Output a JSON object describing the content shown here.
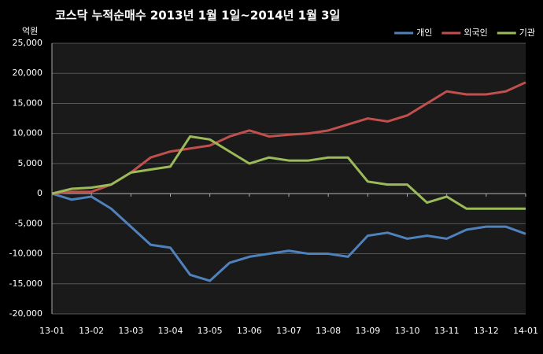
{
  "chart_data": {
    "type": "line",
    "title": "코스닥  누적순매수 2013년 1월 1일~2014년 1월 3일",
    "y_label": "억원",
    "categories": [
      "13-01",
      null,
      "13-02",
      null,
      "13-03",
      null,
      "13-04",
      null,
      "13-05",
      null,
      "13-06",
      null,
      "13-07",
      null,
      "13-08",
      null,
      "13-09",
      null,
      "13-10",
      null,
      "13-11",
      null,
      "13-12",
      null,
      "14-01"
    ],
    "series": [
      {
        "name": "개인",
        "color": "#4f81bd",
        "values": [
          0,
          -1000,
          -500,
          -2500,
          -5500,
          -8500,
          -9000,
          -13500,
          -14500,
          -11500,
          -10500,
          -10000,
          -9500,
          -10000,
          -10000,
          -10500,
          -7000,
          -6500,
          -7500,
          -7000,
          -7500,
          -6000,
          -5500,
          -5500,
          -6700
        ]
      },
      {
        "name": "외국인",
        "color": "#c0504d",
        "values": [
          0,
          300,
          300,
          1500,
          3500,
          6000,
          7000,
          7500,
          8000,
          9500,
          10500,
          9500,
          9800,
          10000,
          10500,
          11500,
          12500,
          12000,
          13000,
          15000,
          17000,
          16500,
          16500,
          17000,
          18500
        ]
      },
      {
        "name": "기관",
        "color": "#9bbb59",
        "values": [
          0,
          800,
          1000,
          1500,
          3500,
          4000,
          4500,
          9500,
          9000,
          7000,
          5000,
          6000,
          5500,
          5500,
          6000,
          6000,
          2000,
          1500,
          1500,
          -1500,
          -500,
          -2500,
          -2500,
          -2500,
          -2500
        ]
      }
    ],
    "ylim": [
      -20000,
      25000
    ],
    "yticks": [
      {
        "value": -20000,
        "label": "-20,000"
      },
      {
        "value": -15000,
        "label": "-15,000"
      },
      {
        "value": -10000,
        "label": "-10,000"
      },
      {
        "value": -5000,
        "label": "-5,000"
      },
      0,
      {
        "value": 5000,
        "label": "5,000"
      },
      {
        "value": 10000,
        "label": "10,000"
      },
      {
        "value": 15000,
        "label": "15,000"
      },
      {
        "value": 20000,
        "label": "20,000"
      },
      {
        "value": 25000,
        "label": "25,000"
      }
    ],
    "grid": true,
    "legend": "top-right"
  }
}
